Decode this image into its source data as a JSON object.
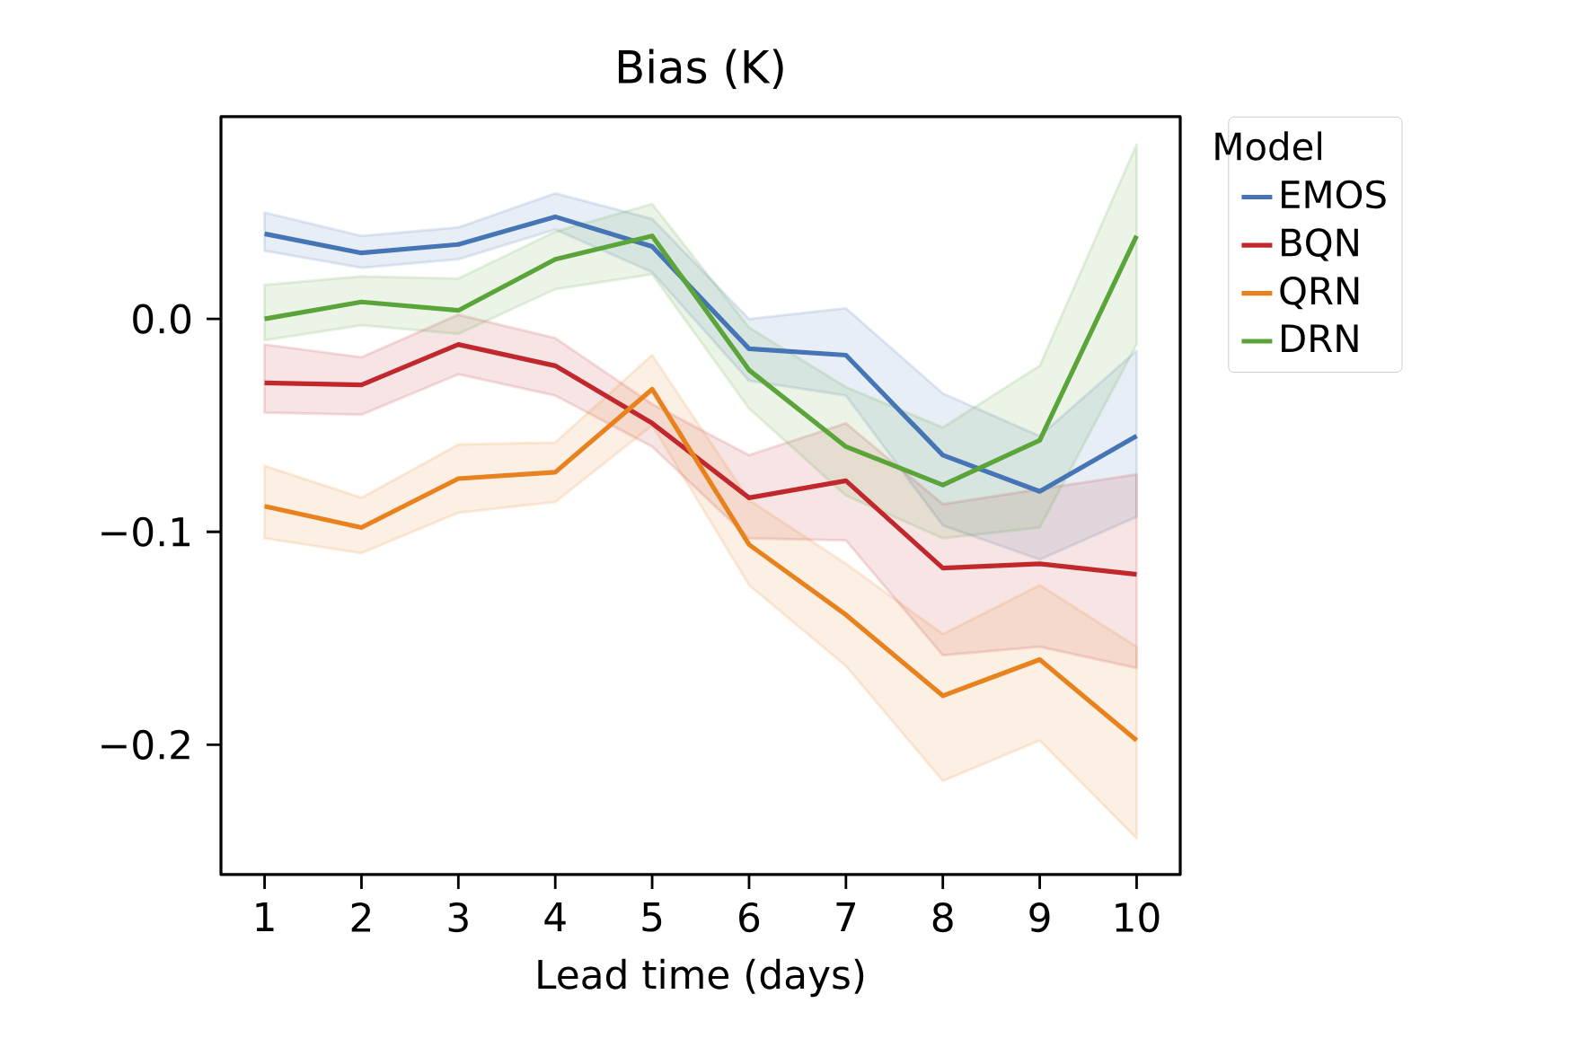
{
  "chart_data": {
    "type": "line",
    "title": "Bias (K)",
    "xlabel": "Lead time (days)",
    "legend_title": "Model",
    "x": [
      1,
      2,
      3,
      4,
      5,
      6,
      7,
      8,
      9,
      10
    ],
    "series": [
      {
        "name": "EMOS",
        "color": "#4575b4",
        "values": [
          0.04,
          0.031,
          0.035,
          0.048,
          0.034,
          -0.014,
          -0.017,
          -0.064,
          -0.081,
          -0.055
        ],
        "upper": [
          0.05,
          0.039,
          0.043,
          0.059,
          0.047,
          0.0,
          0.005,
          -0.035,
          -0.055,
          -0.015
        ],
        "lower": [
          0.032,
          0.024,
          0.028,
          0.042,
          0.022,
          -0.029,
          -0.036,
          -0.097,
          -0.113,
          -0.093
        ]
      },
      {
        "name": "BQN",
        "color": "#c0282d",
        "values": [
          -0.03,
          -0.031,
          -0.012,
          -0.022,
          -0.049,
          -0.084,
          -0.076,
          -0.117,
          -0.115,
          -0.12
        ],
        "upper": [
          -0.012,
          -0.018,
          0.002,
          -0.009,
          -0.04,
          -0.064,
          -0.049,
          -0.087,
          -0.08,
          -0.073
        ],
        "lower": [
          -0.044,
          -0.045,
          -0.026,
          -0.036,
          -0.06,
          -0.103,
          -0.104,
          -0.158,
          -0.154,
          -0.164
        ]
      },
      {
        "name": "QRN",
        "color": "#e8821e",
        "values": [
          -0.088,
          -0.098,
          -0.075,
          -0.072,
          -0.033,
          -0.106,
          -0.139,
          -0.177,
          -0.16,
          -0.198
        ],
        "upper": [
          -0.069,
          -0.084,
          -0.059,
          -0.058,
          -0.017,
          -0.085,
          -0.115,
          -0.148,
          -0.125,
          -0.154
        ],
        "lower": [
          -0.103,
          -0.11,
          -0.091,
          -0.086,
          -0.05,
          -0.125,
          -0.163,
          -0.217,
          -0.198,
          -0.244
        ]
      },
      {
        "name": "DRN",
        "color": "#5aa43a",
        "values": [
          0.0,
          0.008,
          0.004,
          0.028,
          0.039,
          -0.024,
          -0.06,
          -0.078,
          -0.057,
          0.039
        ],
        "upper": [
          0.016,
          0.02,
          0.019,
          0.041,
          0.054,
          -0.004,
          -0.032,
          -0.051,
          -0.022,
          0.082
        ],
        "lower": [
          -0.01,
          -0.003,
          -0.007,
          0.014,
          0.021,
          -0.042,
          -0.083,
          -0.103,
          -0.098,
          -0.012
        ]
      }
    ],
    "xlim": [
      0.55,
      10.45
    ],
    "ylim": [
      -0.261,
      0.095
    ],
    "xticks": [
      1,
      2,
      3,
      4,
      5,
      6,
      7,
      8,
      9,
      10
    ],
    "yticks": [
      {
        "value": 0.0,
        "label": "0.0"
      },
      {
        "value": -0.1,
        "label": "−0.1"
      },
      {
        "value": -0.2,
        "label": "−0.2"
      }
    ],
    "legend": "top right",
    "grid": false,
    "line_style": "solid",
    "marker": "none"
  }
}
